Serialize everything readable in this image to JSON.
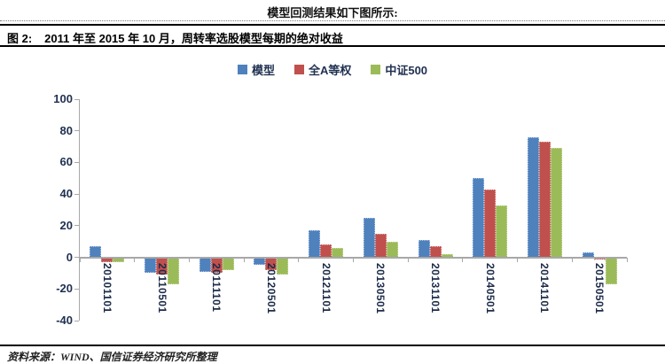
{
  "page": {
    "top_title": "模型回测结果如下图所示:",
    "figure_label": "图 2:",
    "figure_title": "2011 年至 2015 年 10 月，周转率选股模型每期的绝对收益",
    "source_note": "资料来源：WIND、国信证券经济研究所整理"
  },
  "chart_data": {
    "type": "bar",
    "title": "2011 年至 2015 年 10 月，周转率选股模型每期的绝对收益",
    "xlabel": "",
    "ylabel": "",
    "ylim": [
      -40,
      100
    ],
    "ytick_step": 20,
    "grid": false,
    "legend_position": "top-center",
    "categories": [
      "20101101",
      "20110501",
      "20111101",
      "20120501",
      "20121101",
      "20130501",
      "20131101",
      "20140501",
      "20141101",
      "20150501"
    ],
    "series": [
      {
        "name": "模型",
        "color": "#4F81BD",
        "border_color": "#aac6e4",
        "values": [
          7,
          -10,
          -9,
          -5,
          17,
          25,
          11,
          50,
          76,
          3
        ]
      },
      {
        "name": "全A等权",
        "color": "#C0504D",
        "border_color": "#ddaaa8",
        "values": [
          -3,
          -11,
          -10,
          -8,
          8,
          15,
          7,
          43,
          73,
          -1
        ]
      },
      {
        "name": "中证500",
        "color": "#9BBB59",
        "border_color": "#cbd9a4",
        "values": [
          -3,
          -17,
          -8,
          -11,
          6,
          10,
          2,
          33,
          69,
          -17
        ]
      }
    ],
    "axis_color": "#a8a8a8",
    "text_color": "#1f3050"
  }
}
